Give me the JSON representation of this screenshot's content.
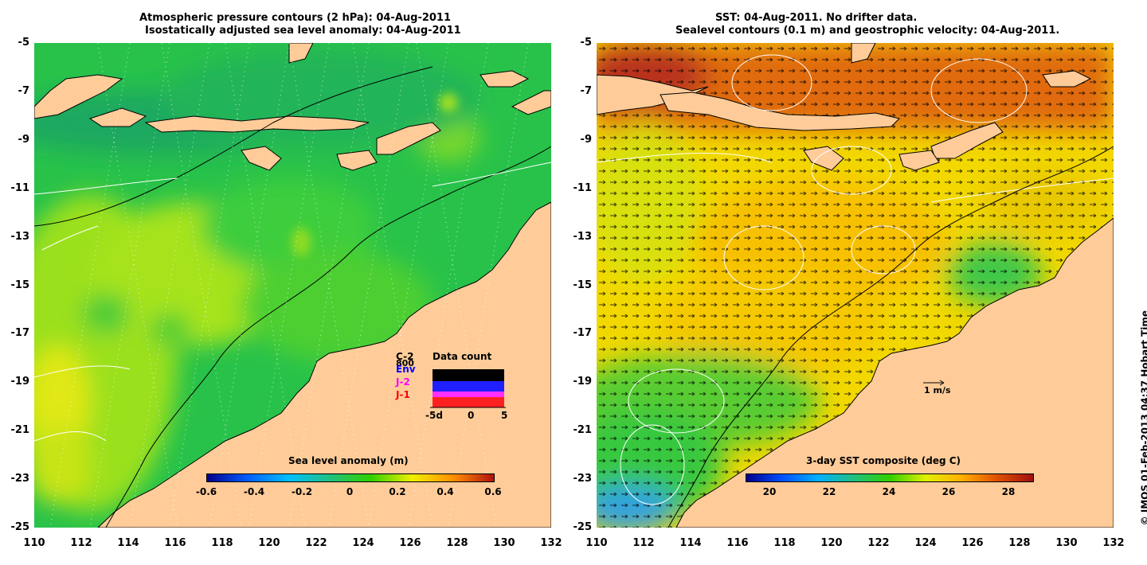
{
  "left_panel": {
    "title_line1": "Atmospheric pressure contours (2 hPa): 04-Aug-2011",
    "title_line2": "Isostatically adjusted sea level anomaly: 04-Aug-2011",
    "colorbar": {
      "title": "Sea level anomaly (m)",
      "ticks": [
        "-0.6",
        "-0.4",
        "-0.2",
        "0",
        "0.2",
        "0.4",
        "0.6"
      ],
      "range": [
        -0.6,
        0.6
      ],
      "colormap": [
        "#00008b",
        "#0060ff",
        "#00c0ff",
        "#20c080",
        "#30d000",
        "#f0f000",
        "#ff9000",
        "#b01010"
      ]
    },
    "inset": {
      "title": "Data count",
      "count_label": "800",
      "series": [
        {
          "label": "C-2",
          "color": "#000000"
        },
        {
          "label": "Env",
          "color": "#0000ff"
        },
        {
          "label": "J-2",
          "color": "#ff00ff"
        },
        {
          "label": "J-1",
          "color": "#ff0000"
        }
      ],
      "xticks": [
        "-5d",
        "0",
        "5"
      ]
    }
  },
  "right_panel": {
    "title_line1": "SST: 04-Aug-2011. No drifter data.",
    "title_line2": "Sealevel contours (0.1 m) and geostrophic velocity: 04-Aug-2011.",
    "colorbar": {
      "title": "3-day SST composite (deg C)",
      "ticks": [
        "20",
        "22",
        "24",
        "26",
        "28"
      ],
      "range": [
        19.2,
        28.8
      ],
      "colormap": [
        "#00008b",
        "#0050ff",
        "#00b0ff",
        "#20c080",
        "#30d000",
        "#e0f000",
        "#ffb000",
        "#e05000",
        "#a01010"
      ]
    },
    "scale_label": "1 m/s"
  },
  "axes": {
    "lon_ticks": [
      "110",
      "112",
      "114",
      "116",
      "118",
      "120",
      "122",
      "124",
      "126",
      "128",
      "130",
      "132"
    ],
    "lat_ticks": [
      "-5",
      "-7",
      "-9",
      "-11",
      "-13",
      "-15",
      "-17",
      "-19",
      "-21",
      "-23",
      "-25"
    ],
    "lon_range": [
      110,
      132
    ],
    "lat_range": [
      -25,
      -5
    ]
  },
  "colors": {
    "land": "#ffcc99",
    "coast": "#000000",
    "contour": "#ffffff"
  },
  "copyright": "© IMOS 01-Feb-2013 04:37 Hobart Time"
}
